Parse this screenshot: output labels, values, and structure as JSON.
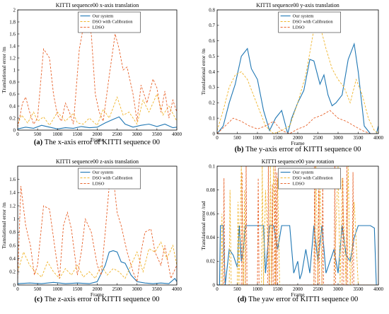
{
  "legend": [
    "Our system",
    "DSO with Calibration",
    "LDSO"
  ],
  "colors": {
    "ours": "#1f77b4",
    "dso": "#f0b429",
    "ldso": "#e8632b"
  },
  "chart_data": [
    {
      "id": "a",
      "type": "line",
      "title": "KITTI sequence00 x-axis translation",
      "xlabel": "Frame",
      "ylabel": "Translational error /m",
      "xlim": [
        0,
        4000
      ],
      "ylim": [
        0,
        2
      ],
      "xticks": [
        "0",
        "500",
        "1000",
        "1500",
        "2000",
        "2500",
        "3000",
        "3500",
        "4000"
      ],
      "yticks": [
        "0",
        "0.2",
        "0.4",
        "0.6",
        "0.8",
        "1",
        "1.2",
        "1.4",
        "1.6",
        "1.8",
        "2"
      ],
      "caption": {
        "label": "(a)",
        "text": "The x-axis error of KITTI sequence 00"
      },
      "series": [
        {
          "name": "Our system",
          "x": [
            0,
            200,
            400,
            600,
            800,
            1000,
            1200,
            1400,
            1600,
            1800,
            2000,
            2200,
            2400,
            2550,
            2700,
            2900,
            3100,
            3300,
            3500,
            3700,
            3900,
            4000
          ],
          "y": [
            0.02,
            0.05,
            0.03,
            0.08,
            0.05,
            0.02,
            0.04,
            0.03,
            0.06,
            0.04,
            0.05,
            0.12,
            0.18,
            0.22,
            0.1,
            0.05,
            0.08,
            0.1,
            0.06,
            0.1,
            0.04,
            0.05
          ]
        },
        {
          "name": "DSO with Calibration",
          "x": [
            0,
            100,
            250,
            400,
            500,
            650,
            800,
            1000,
            1200,
            1400,
            1500,
            1650,
            1800,
            2000,
            2150,
            2300,
            2500,
            2650,
            2800,
            3000,
            3150,
            3300,
            3500,
            3650,
            3800,
            4000
          ],
          "y": [
            0.1,
            0.25,
            0.12,
            0.3,
            0.15,
            0.22,
            0.08,
            0.3,
            0.15,
            0.28,
            0.12,
            0.1,
            0.2,
            0.08,
            0.35,
            0.2,
            0.55,
            0.25,
            0.3,
            0.1,
            0.5,
            0.3,
            0.6,
            0.25,
            0.4,
            0.15
          ]
        },
        {
          "name": "LDSO",
          "x": [
            0,
            120,
            200,
            300,
            400,
            500,
            650,
            800,
            900,
            1000,
            1100,
            1200,
            1300,
            1400,
            1550,
            1700,
            1850,
            1950,
            2050,
            2150,
            2300,
            2450,
            2550,
            2650,
            2750,
            2900,
            3000,
            3100,
            3250,
            3400,
            3500,
            3600,
            3700,
            3800,
            3900,
            4000
          ],
          "y": [
            0.05,
            0.45,
            0.55,
            0.3,
            0.1,
            0.2,
            1.35,
            1.2,
            0.6,
            0.25,
            0.15,
            0.45,
            0.3,
            0.1,
            1.35,
            1.9,
            1.6,
            0.6,
            0.3,
            0.15,
            0.9,
            1.6,
            1.35,
            1.0,
            1.05,
            0.6,
            0.15,
            0.75,
            0.45,
            0.85,
            0.7,
            0.3,
            0.65,
            0.2,
            0.5,
            0.3
          ]
        }
      ]
    },
    {
      "id": "b",
      "type": "line",
      "title": "KITTI sequence00 y-axis translation",
      "xlabel": "Frame",
      "ylabel": "Translational error /m",
      "xlim": [
        0,
        4000
      ],
      "ylim": [
        0,
        0.8
      ],
      "xticks": [
        "0",
        "500",
        "1000",
        "1500",
        "2000",
        "2500",
        "3000",
        "3500",
        "4000"
      ],
      "yticks": [
        "0",
        "0.1",
        "0.2",
        "0.3",
        "0.4",
        "0.5",
        "0.6",
        "0.7",
        "0.8"
      ],
      "caption": {
        "label": "(b)",
        "text": "The y-axis error of KITTI sequence 00"
      },
      "series": [
        {
          "name": "Our system",
          "x": [
            0,
            150,
            300,
            450,
            600,
            750,
            850,
            1000,
            1150,
            1300,
            1450,
            1600,
            1750,
            1850,
            2000,
            2150,
            2300,
            2400,
            2550,
            2650,
            2750,
            2850,
            2950,
            3100,
            3250,
            3400,
            3500,
            3650,
            3800,
            3950,
            4000
          ],
          "y": [
            0.0,
            0.05,
            0.2,
            0.32,
            0.5,
            0.55,
            0.42,
            0.35,
            0.15,
            0.02,
            0.1,
            0.15,
            0.0,
            0.1,
            0.2,
            0.28,
            0.48,
            0.47,
            0.32,
            0.38,
            0.25,
            0.18,
            0.2,
            0.25,
            0.48,
            0.58,
            0.4,
            0.05,
            0.0,
            0.0,
            0.05
          ]
        },
        {
          "name": "DSO with Calibration",
          "x": [
            0,
            150,
            300,
            450,
            600,
            750,
            900,
            1050,
            1200,
            1400,
            1600,
            1800,
            2000,
            2200,
            2350,
            2450,
            2550,
            2700,
            2850,
            3000,
            3150,
            3300,
            3450,
            3600,
            3750,
            3900,
            4000
          ],
          "y": [
            0.02,
            0.15,
            0.3,
            0.38,
            0.4,
            0.35,
            0.25,
            0.15,
            0.05,
            0.0,
            0.02,
            0.05,
            0.2,
            0.38,
            0.6,
            0.75,
            0.7,
            0.55,
            0.42,
            0.35,
            0.3,
            0.2,
            0.35,
            0.25,
            0.1,
            0.02,
            0.0
          ]
        },
        {
          "name": "LDSO",
          "x": [
            0,
            200,
            400,
            600,
            800,
            1000,
            1200,
            1400,
            1600,
            1800,
            2000,
            2200,
            2400,
            2600,
            2800,
            3000,
            3200,
            3400,
            3600,
            3800,
            4000
          ],
          "y": [
            0.0,
            0.05,
            0.1,
            0.08,
            0.05,
            0.03,
            0.05,
            0.08,
            0.02,
            0.0,
            0.03,
            0.05,
            0.1,
            0.12,
            0.15,
            0.1,
            0.08,
            0.05,
            0.02,
            0.0,
            0.0
          ]
        }
      ]
    },
    {
      "id": "c",
      "type": "line",
      "title": "KITTI sequence00 z-axis translation",
      "xlabel": "Frame",
      "ylabel": "Translational error /m",
      "xlim": [
        0,
        4000
      ],
      "ylim": [
        0,
        1.8
      ],
      "xticks": [
        "0",
        "500",
        "1000",
        "1500",
        "2000",
        "2500",
        "3000",
        "3500",
        "4000"
      ],
      "yticks": [
        "0",
        "0.2",
        "0.4",
        "0.6",
        "0.8",
        "1",
        "1.2",
        "1.4",
        "1.6"
      ],
      "caption": {
        "label": "(c)",
        "text": "The z-axis error of KITTI sequence 00"
      },
      "series": [
        {
          "name": "Our system",
          "x": [
            0,
            300,
            600,
            900,
            1200,
            1500,
            1800,
            2000,
            2200,
            2300,
            2400,
            2500,
            2600,
            2700,
            2850,
            3000,
            3200,
            3400,
            3600,
            3800,
            3950,
            4000
          ],
          "y": [
            0.02,
            0.03,
            0.02,
            0.04,
            0.02,
            0.03,
            0.02,
            0.05,
            0.3,
            0.5,
            0.52,
            0.5,
            0.35,
            0.33,
            0.15,
            0.05,
            0.03,
            0.02,
            0.03,
            0.02,
            0.1,
            0.05
          ]
        },
        {
          "name": "DSO with Calibration",
          "x": [
            0,
            150,
            300,
            450,
            600,
            750,
            900,
            1050,
            1200,
            1350,
            1500,
            1650,
            1800,
            1950,
            2100,
            2250,
            2400,
            2550,
            2700,
            2850,
            3000,
            3150,
            3300,
            3450,
            3600,
            3750,
            3900,
            4000
          ],
          "y": [
            0.2,
            0.5,
            0.3,
            0.2,
            0.12,
            0.35,
            0.2,
            0.1,
            0.25,
            0.15,
            0.3,
            0.12,
            0.2,
            0.1,
            0.3,
            0.15,
            0.25,
            0.2,
            0.1,
            0.3,
            0.5,
            0.2,
            0.55,
            0.5,
            0.65,
            0.4,
            0.6,
            0.3
          ]
        },
        {
          "name": "LDSO",
          "x": [
            0,
            80,
            200,
            320,
            420,
            500,
            650,
            800,
            950,
            1050,
            1150,
            1250,
            1350,
            1500,
            1600,
            1700,
            1850,
            2000,
            2100,
            2200,
            2300,
            2400,
            2500,
            2600,
            2750,
            2900,
            3000,
            3100,
            3200,
            3350,
            3450,
            3600,
            3700,
            3850,
            4000
          ],
          "y": [
            0.1,
            1.5,
            0.9,
            0.6,
            0.15,
            0.3,
            1.2,
            1.15,
            0.5,
            0.1,
            0.9,
            1.1,
            0.85,
            0.15,
            0.5,
            1.0,
            0.8,
            0.3,
            0.15,
            0.8,
            1.5,
            1.65,
            1.1,
            0.9,
            0.5,
            0.2,
            0.05,
            0.5,
            0.8,
            0.85,
            0.5,
            0.3,
            0.6,
            0.1,
            0.3
          ]
        }
      ]
    },
    {
      "id": "d",
      "type": "line",
      "title": "KITTI sequence00 yaw rotation",
      "xlabel": "Frame",
      "ylabel": "Translational error /rad",
      "xlim": [
        0,
        4000
      ],
      "ylim": [
        0,
        0.1
      ],
      "xticks": [
        "0",
        "500",
        "1000",
        "1500",
        "2000",
        "2500",
        "3000",
        "3500",
        "4000"
      ],
      "yticks": [
        "0",
        "0.02",
        "0.04",
        "0.06",
        "0.08",
        "0.1"
      ],
      "caption": {
        "label": "(d)",
        "text": "The yaw error of KITTI sequence 00"
      },
      "series": [
        {
          "name": "Our system",
          "x": [
            0,
            60,
            80,
            150,
            200,
            300,
            400,
            500,
            550,
            600,
            650,
            700,
            800,
            1000,
            1150,
            1200,
            1300,
            1400,
            1500,
            1600,
            1700,
            1800,
            1900,
            2000,
            2050,
            2100,
            2200,
            2300,
            2400,
            2500,
            2600,
            2700,
            2800,
            2900,
            3000,
            3100,
            3200,
            3300,
            3400,
            3500,
            3600,
            3700,
            3800,
            3900,
            3950,
            4000
          ],
          "y": [
            0.0,
            0.0,
            0.05,
            0.05,
            0.0,
            0.03,
            0.025,
            0.015,
            0.05,
            0.02,
            0.03,
            0.05,
            0.05,
            0.05,
            0.05,
            0.01,
            0.05,
            0.05,
            0.03,
            0.05,
            0.05,
            0.05,
            0.01,
            0.02,
            0.005,
            0.01,
            0.03,
            0.01,
            0.05,
            0.02,
            0.05,
            0.01,
            0.02,
            0.03,
            0.01,
            0.05,
            0.025,
            0.02,
            0.04,
            0.05,
            0.05,
            0.05,
            0.05,
            0.048,
            0.0,
            0.0
          ]
        },
        {
          "name": "DSO with Calibration",
          "x": [
            0,
            100,
            120,
            140,
            300,
            320,
            350,
            500,
            520,
            540,
            600,
            650,
            680,
            700,
            900,
            1100,
            1120,
            1150,
            1200,
            1300,
            1320,
            1350,
            1400,
            1450,
            1500,
            1550,
            1700,
            2000,
            2400,
            2450,
            2500,
            2550,
            2600,
            2700,
            2900,
            3000,
            3050,
            3100,
            3200,
            3250,
            3300,
            3400,
            3500,
            3700,
            4000
          ],
          "y": [
            0.0,
            0.0,
            0.06,
            0.0,
            0.0,
            0.08,
            0.0,
            0.0,
            0.07,
            0.0,
            0.1,
            0.0,
            0.08,
            0.0,
            0.0,
            0.0,
            0.1,
            0.0,
            0.08,
            0.0,
            0.1,
            0.0,
            0.1,
            0.0,
            0.09,
            0.0,
            0.0,
            0.0,
            0.0,
            0.1,
            0.0,
            0.09,
            0.0,
            0.0,
            0.0,
            0.1,
            0.0,
            0.09,
            0.0,
            0.1,
            0.0,
            0.07,
            0.0,
            0.0,
            0.0
          ]
        },
        {
          "name": "LDSO",
          "x": [
            0,
            150,
            170,
            190,
            600,
            620,
            640,
            700,
            720,
            740,
            1000,
            1020,
            1040,
            1250,
            1270,
            1290,
            1350,
            1370,
            1390,
            1420,
            1440,
            1460,
            1480,
            1500,
            1520,
            2400,
            2420,
            2440,
            2500,
            2520,
            2540,
            2600,
            2620,
            2640,
            2900,
            2920,
            2940,
            3100,
            3120,
            3140,
            3200,
            3220,
            3240,
            3350,
            3370,
            3390,
            3500,
            4000
          ],
          "y": [
            0.0,
            0.0,
            0.09,
            0.0,
            0.0,
            0.095,
            0.0,
            0.0,
            0.1,
            0.0,
            0.0,
            0.09,
            0.0,
            0.0,
            0.1,
            0.0,
            0.0,
            0.085,
            0.0,
            0.0,
            0.1,
            0.0,
            0.095,
            0.0,
            0.0,
            0.0,
            0.1,
            0.0,
            0.0,
            0.095,
            0.0,
            0.0,
            0.09,
            0.0,
            0.0,
            0.1,
            0.0,
            0.0,
            0.09,
            0.0,
            0.0,
            0.1,
            0.0,
            0.0,
            0.095,
            0.0,
            0.0,
            0.0
          ]
        }
      ]
    }
  ]
}
